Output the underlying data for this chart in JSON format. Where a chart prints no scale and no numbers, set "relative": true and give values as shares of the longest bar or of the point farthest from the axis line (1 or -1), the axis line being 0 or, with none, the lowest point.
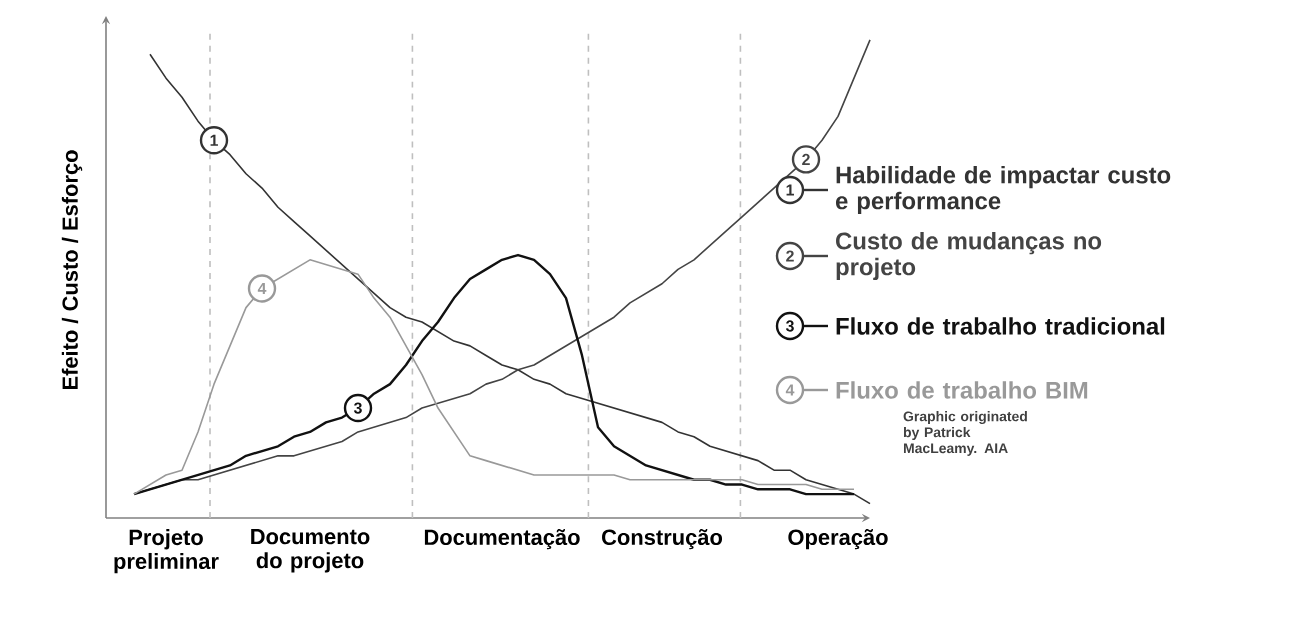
{
  "chart_data": {
    "type": "line",
    "relative": true,
    "ylabel": "Efeito / Custo / Esforço",
    "categories": [
      null,
      null,
      "Projeto preliminar",
      null,
      null,
      null,
      null,
      null,
      null,
      null,
      null,
      "Documento do projeto",
      null,
      null,
      null,
      null,
      null,
      null,
      null,
      null,
      null,
      null,
      null,
      "Documentação",
      null,
      null,
      null,
      null,
      null,
      null,
      null,
      null,
      null,
      "Construção",
      null,
      null,
      null,
      null,
      null,
      null,
      null,
      null,
      null,
      null,
      "Operação",
      null,
      null
    ],
    "series": [
      {
        "name": "Habilidade de impactar custo e performance",
        "color": "#333333",
        "values": [
          null,
          0.97,
          0.92,
          0.88,
          0.83,
          0.79,
          0.76,
          0.72,
          0.69,
          0.65,
          0.62,
          0.59,
          0.56,
          0.53,
          0.5,
          0.47,
          0.44,
          0.42,
          0.41,
          0.39,
          0.37,
          0.36,
          0.34,
          0.32,
          0.31,
          0.29,
          0.28,
          0.26,
          0.25,
          0.24,
          0.23,
          0.22,
          0.21,
          0.2,
          0.18,
          0.17,
          0.15,
          0.14,
          0.13,
          0.12,
          0.1,
          0.1,
          0.08,
          0.07,
          0.06,
          0.05,
          0.03
        ]
      },
      {
        "name": "Custo de mudanças no projeto",
        "color": "#444444",
        "values": [
          0.05,
          0.06,
          0.07,
          0.08,
          0.08,
          0.09,
          0.1,
          0.11,
          0.12,
          0.13,
          0.13,
          0.14,
          0.15,
          0.16,
          0.18,
          0.19,
          0.2,
          0.21,
          0.23,
          0.24,
          0.25,
          0.26,
          0.28,
          0.29,
          0.31,
          0.32,
          0.34,
          0.36,
          0.38,
          0.4,
          0.42,
          0.45,
          0.47,
          0.49,
          0.52,
          0.54,
          0.57,
          0.6,
          0.63,
          0.66,
          0.69,
          0.72,
          0.75,
          0.79,
          0.84,
          0.92,
          1.0
        ]
      },
      {
        "name": "Fluxo de trabalho tradicional",
        "color": "#111111",
        "values": [
          0.05,
          0.06,
          0.07,
          0.08,
          0.09,
          0.1,
          0.11,
          0.13,
          0.14,
          0.15,
          0.17,
          0.18,
          0.2,
          0.21,
          0.23,
          0.26,
          0.28,
          0.32,
          0.37,
          0.41,
          0.46,
          0.5,
          0.52,
          0.54,
          0.55,
          0.54,
          0.51,
          0.46,
          0.34,
          0.19,
          0.15,
          0.13,
          0.11,
          0.1,
          0.09,
          0.08,
          0.08,
          0.07,
          0.07,
          0.06,
          0.06,
          0.06,
          0.05,
          0.05,
          0.05,
          0.05,
          null
        ]
      },
      {
        "name": "Fluxo de trabalho BIM",
        "color": "#999999",
        "values": [
          0.05,
          0.07,
          0.09,
          0.1,
          0.18,
          0.28,
          0.36,
          0.44,
          0.48,
          0.5,
          0.52,
          0.54,
          0.53,
          0.52,
          0.51,
          0.46,
          0.42,
          0.36,
          0.3,
          0.23,
          0.18,
          0.13,
          0.12,
          0.11,
          0.1,
          0.09,
          0.09,
          0.09,
          0.09,
          0.09,
          0.09,
          0.08,
          0.08,
          0.08,
          0.08,
          0.08,
          0.08,
          0.08,
          0.08,
          0.07,
          0.07,
          0.07,
          0.07,
          0.06,
          0.06,
          0.06,
          null
        ]
      }
    ],
    "annotations": [
      "1",
      "2",
      "3",
      "4",
      "Graphic originated by Patrick MacLeamy. AIA"
    ],
    "legend": "right",
    "marker": "none"
  }
}
